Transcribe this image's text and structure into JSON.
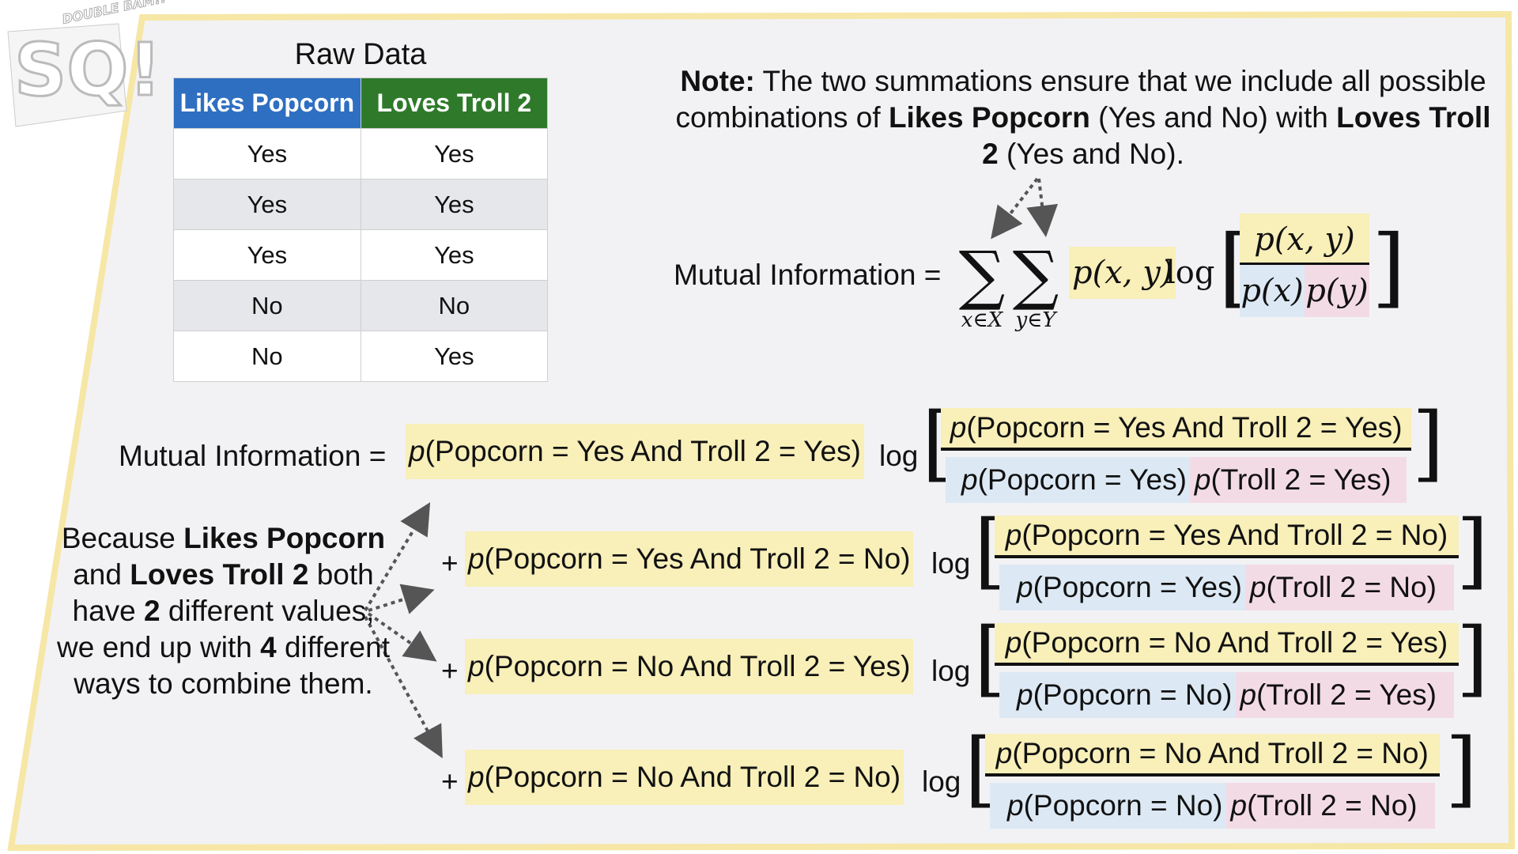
{
  "logo": {
    "letters": "SQ!",
    "banner": "DOUBLE BAM!!"
  },
  "raw_data": {
    "title": "Raw Data",
    "headers": [
      "Likes Popcorn",
      "Loves Troll 2"
    ],
    "header_colors": [
      "#2e6fc1",
      "#2f7a2a"
    ],
    "rows": [
      [
        "Yes",
        "Yes"
      ],
      [
        "Yes",
        "Yes"
      ],
      [
        "Yes",
        "Yes"
      ],
      [
        "No",
        "No"
      ],
      [
        "No",
        "Yes"
      ]
    ]
  },
  "note": {
    "label": "Note:",
    "t1": " The two summations ensure that we include all possible combinations of ",
    "b1": "Likes Popcorn",
    "t2": " (Yes and No) with ",
    "b2": "Loves Troll 2",
    "t3": " (Yes and No)."
  },
  "general_formula": {
    "label": "Mutual Information =",
    "sum_symbol": "∑",
    "sub_x": "x∈X",
    "sub_y": "y∈Y",
    "joint": "p(x, y)",
    "log": "log",
    "num": "p(x, y)",
    "den_x": "p(x)",
    "den_y": "p(y)"
  },
  "expanded": {
    "label": "Mutual Information =",
    "plus": "+",
    "log": "log",
    "p": "p",
    "terms": [
      {
        "joint": "(Popcorn = Yes And Troll 2 = Yes)",
        "den_a": "(Popcorn = Yes)",
        "den_b": "(Troll 2 = Yes)"
      },
      {
        "joint": "(Popcorn = Yes And Troll 2 = No)",
        "den_a": "(Popcorn = Yes)",
        "den_b": "(Troll 2 = No)"
      },
      {
        "joint": "(Popcorn = No And Troll 2 = Yes)",
        "den_a": "(Popcorn = No)",
        "den_b": "(Troll 2 = Yes)"
      },
      {
        "joint": "(Popcorn = No And Troll 2 = No)",
        "den_a": "(Popcorn = No)",
        "den_b": "(Troll 2 = No)"
      }
    ]
  },
  "because": {
    "t1": "Because ",
    "b1": "Likes Popcorn",
    "t2": " and ",
    "b2": "Loves Troll 2",
    "t3": " both have ",
    "b3": "2",
    "t4": " different values, we end up with ",
    "b4": "4",
    "t5": " different ways to combine them."
  },
  "colors": {
    "joint_highlight": "#f8efb9",
    "x_highlight": "#dce9f4",
    "y_highlight": "#f3dbe6",
    "panel": "#f2f2f4",
    "panel_border": "#f6e7a6"
  }
}
